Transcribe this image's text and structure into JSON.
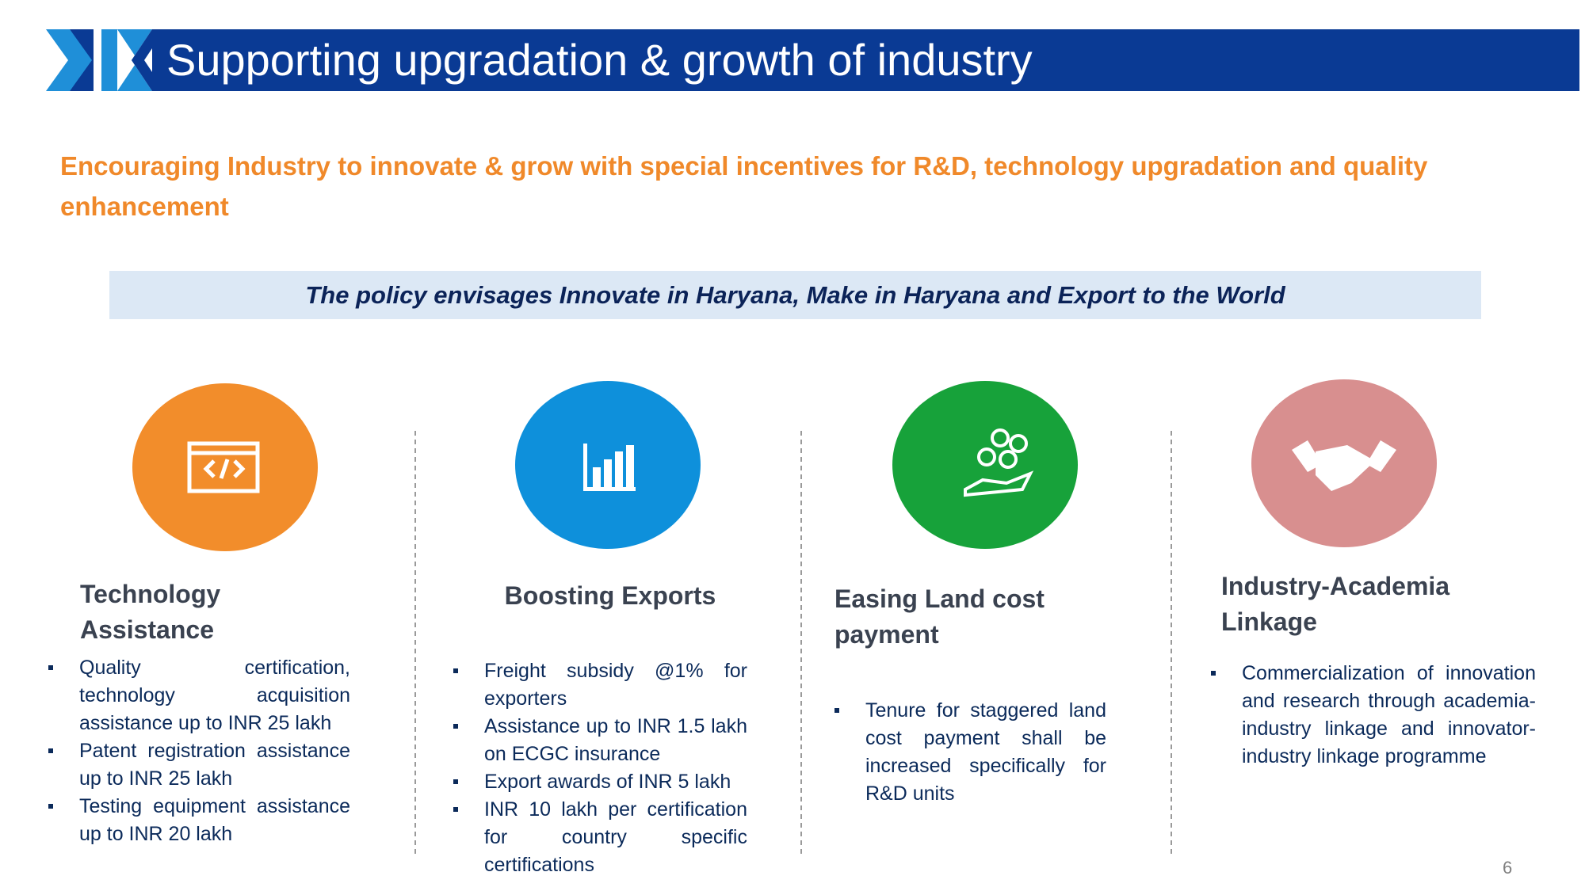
{
  "header": {
    "title": "Supporting upgradation & growth of industry"
  },
  "subtitle": "Encouraging Industry to innovate & grow with special incentives for R&D, technology upgradation and quality  enhancement",
  "banner": "The policy envisages Innovate in Haryana, Make in Haryana and Export to the World",
  "columns": [
    {
      "title": "Technology Assistance",
      "bullets": [
        "Quality certification, technology acquisition assistance up to INR 25 lakh",
        "Patent registration assistance  up to INR 25 lakh",
        "Testing equipment assistance  up to INR 20 lakh"
      ]
    },
    {
      "title": "Boosting Exports",
      "bullets": [
        "Freight subsidy @1% for exporters",
        "Assistance up to INR 1.5 lakh on ECGC insurance",
        "Export awards of INR 5 lakh",
        "INR 10 lakh per certification for country specific certifications"
      ]
    },
    {
      "title": "Easing Land cost payment",
      "bullets": [
        "Tenure for staggered land cost payment shall be increased specifically for R&D units"
      ]
    },
    {
      "title": "Industry-Academia Linkage",
      "bullets": [
        "Commercialization of innovation and research through academia-industry linkage and innovator- industry linkage programme"
      ]
    }
  ],
  "page_number": "6"
}
